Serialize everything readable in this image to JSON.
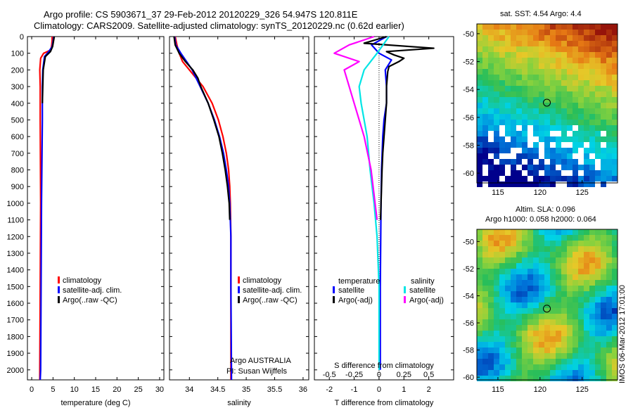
{
  "header": {
    "title_line1": "Argo profile: CS 5903671_37 29-Feb-2012 20120229_326 54.947S 120.811E",
    "title_line2": "Climatology: CARS2009. Satellite-adjusted climatology: synTS_20120229.nc (0.62d earlier)"
  },
  "colors": {
    "climatology": "#ff0000",
    "satellite": "#0000ff",
    "argo": "#000000",
    "sal_satellite": "#00e5e5",
    "sal_argo": "#ff00ff"
  },
  "chart_data": [
    {
      "type": "line",
      "id": "temperature",
      "xlabel": "temperature (deg C)",
      "ylabel": "",
      "xlim": [
        -1,
        31
      ],
      "ylim": [
        2060,
        0
      ],
      "xticks": [
        0,
        5,
        10,
        15,
        20,
        25,
        30
      ],
      "yticks": [
        0,
        100,
        200,
        300,
        400,
        500,
        600,
        700,
        800,
        900,
        1000,
        1100,
        1200,
        1300,
        1400,
        1500,
        1600,
        1700,
        1800,
        1900,
        2000
      ],
      "legend": [
        "climatology",
        "satellite-adj. clim.",
        "Argo(..raw -QC)"
      ],
      "legend_keys": [
        "climatology",
        "satellite",
        "argo"
      ],
      "series": [
        {
          "name": "climatology",
          "color_key": "climatology",
          "depth": [
            0,
            20,
            50,
            80,
            100,
            130,
            200,
            300,
            500,
            1000,
            1500,
            2000,
            2060
          ],
          "values": [
            4.8,
            4.8,
            4.7,
            4.5,
            2.8,
            2.1,
            1.9,
            2.0,
            2.0,
            2.1,
            2.0,
            1.9,
            1.9
          ]
        },
        {
          "name": "satellite-adj. clim.",
          "color_key": "satellite",
          "depth": [
            0,
            30,
            60,
            90,
            120,
            200,
            300,
            500,
            1000,
            1500,
            2000,
            2060
          ],
          "values": [
            5.2,
            5.0,
            4.8,
            4.0,
            3.0,
            2.6,
            2.5,
            2.5,
            2.3,
            2.2,
            2.1,
            2.0
          ]
        },
        {
          "name": "Argo(..raw -QC)",
          "color_key": "argo",
          "depth": [
            0,
            30,
            60,
            90,
            120,
            200,
            300,
            400
          ],
          "values": [
            5.3,
            5.1,
            4.9,
            4.4,
            3.2,
            2.7,
            2.6,
            2.5
          ]
        }
      ]
    },
    {
      "type": "line",
      "id": "salinity",
      "xlabel": "salinity",
      "xlim": [
        33.65,
        36.1
      ],
      "ylim": [
        2060,
        0
      ],
      "xticks": [
        34,
        34.5,
        35,
        35.5,
        36
      ],
      "xtick_labels": [
        "34",
        "34.5",
        "35",
        "35.5",
        "36"
      ],
      "legend": [
        "climatology",
        "satellite-adj. clim.",
        "Argo(..raw -QC)"
      ],
      "legend_keys": [
        "climatology",
        "satellite",
        "argo"
      ],
      "annotation": [
        "Argo AUSTRALIA",
        "PI: Susan Wijffels"
      ],
      "series": [
        {
          "name": "climatology",
          "color_key": "climatology",
          "depth": [
            0,
            50,
            100,
            150,
            200,
            300,
            400,
            500,
            600,
            700,
            800,
            900,
            1000,
            1200,
            1500,
            2000,
            2060
          ],
          "values": [
            33.75,
            33.78,
            33.82,
            33.88,
            34.0,
            34.24,
            34.4,
            34.51,
            34.59,
            34.65,
            34.69,
            34.71,
            34.72,
            34.73,
            34.73,
            34.73,
            34.73
          ]
        },
        {
          "name": "satellite-adj. clim.",
          "color_key": "satellite",
          "depth": [
            0,
            50,
            100,
            150,
            200,
            250,
            300,
            400,
            500,
            600,
            700,
            800,
            900,
            1000,
            1200,
            1500,
            2000,
            2060
          ],
          "values": [
            33.74,
            33.76,
            33.85,
            33.95,
            34.05,
            34.12,
            34.19,
            34.33,
            34.44,
            34.53,
            34.6,
            34.65,
            34.69,
            34.71,
            34.73,
            34.73,
            34.74,
            34.74
          ]
        },
        {
          "name": "Argo(..raw -QC)",
          "color_key": "argo",
          "depth": [
            0,
            50,
            100,
            150,
            200,
            250,
            300,
            400,
            500,
            600,
            700,
            800,
            900,
            1000,
            1100
          ],
          "values": [
            33.73,
            33.75,
            33.82,
            33.93,
            34.06,
            34.15,
            34.2,
            34.33,
            34.43,
            34.52,
            34.58,
            34.63,
            34.67,
            34.7,
            34.71
          ]
        }
      ]
    },
    {
      "type": "line",
      "id": "difference",
      "xlabel": "T difference from climatology",
      "xlabel_top": "S difference from climatology",
      "xlim": [
        -2.6,
        3.0
      ],
      "ylim": [
        2060,
        0
      ],
      "xticks": [
        -2,
        -1,
        0,
        1,
        2
      ],
      "s_ticks": [
        -0.5,
        -0.25,
        0,
        0.25,
        0.5
      ],
      "s_tick_labels": [
        "-0.5",
        "-0.25",
        "0",
        "0.25",
        "0.5"
      ],
      "legend_temperature_title": "temperature",
      "legend_salinity_title": "salinity",
      "legend_temperature": [
        "satellite",
        "Argo(-adj)"
      ],
      "legend_salinity": [
        "satellite",
        "Argo(-adj)"
      ],
      "series": [
        {
          "name": "T satellite",
          "color_key": "satellite",
          "depth": [
            0,
            50,
            100,
            140,
            200,
            300,
            400,
            500,
            600,
            800,
            1000,
            1500,
            2000
          ],
          "values": [
            0.3,
            -0.3,
            0.0,
            0.5,
            0.25,
            0.3,
            0.3,
            0.2,
            0.15,
            0.1,
            0.08,
            0.05,
            0.05
          ]
        },
        {
          "name": "T Argo(-adj)",
          "color_key": "argo",
          "depth": [
            0,
            40,
            70,
            90,
            110,
            130,
            150,
            180,
            210,
            300,
            400,
            500,
            600,
            700,
            800,
            900,
            1000,
            1100
          ],
          "values": [
            0.3,
            -0.6,
            2.2,
            0.3,
            0.6,
            1.0,
            0.8,
            0.4,
            0.35,
            0.3,
            0.3,
            0.25,
            0.2,
            0.15,
            0.12,
            0.1,
            0.08,
            0.06
          ]
        },
        {
          "name": "S satellite",
          "color_key": "sal_satellite",
          "depth": [
            0,
            100,
            200,
            300,
            400,
            500,
            600,
            800,
            1000,
            1200,
            1500,
            2000
          ],
          "values": [
            0.1,
            -0.02,
            -0.15,
            -0.2,
            -0.18,
            -0.15,
            -0.12,
            -0.09,
            -0.05,
            -0.02,
            0.0,
            0.0
          ]
        },
        {
          "name": "S Argo(-adj)",
          "color_key": "sal_argo",
          "depth": [
            0,
            50,
            100,
            150,
            200,
            300,
            400,
            500,
            600,
            800,
            1000,
            1100
          ],
          "values": [
            -0.05,
            -0.3,
            -0.45,
            -0.2,
            -0.35,
            -0.3,
            -0.25,
            -0.2,
            -0.15,
            -0.08,
            -0.04,
            -0.02
          ]
        }
      ]
    },
    {
      "type": "heatmap",
      "id": "sst_map",
      "title": "sat. SST: 4.54  Argo: 4.4",
      "xticks": [
        115,
        120,
        125
      ],
      "yticks": [
        -50,
        -52,
        -54,
        -56,
        -58,
        -60
      ],
      "xlim": [
        112.5,
        129.2
      ],
      "ylim": [
        -60.7,
        -49.3
      ],
      "marker": {
        "lon": 120.811,
        "lat": -54.947
      }
    },
    {
      "type": "heatmap",
      "id": "sla_map",
      "title_line1": "Altim. SLA: 0.096",
      "title_line2": "Argo h1000: 0.058 h2000: 0.064",
      "xticks": [
        115,
        120,
        125
      ],
      "yticks": [
        -50,
        -52,
        -54,
        -56,
        -58,
        -60
      ],
      "xlim": [
        112.5,
        129.2
      ],
      "ylim": [
        -60.2,
        -49.1
      ],
      "marker": {
        "lon": 120.811,
        "lat": -54.947
      }
    }
  ],
  "footer": {
    "credit": "IMOS 06-Mar-2012 17:01:00"
  }
}
